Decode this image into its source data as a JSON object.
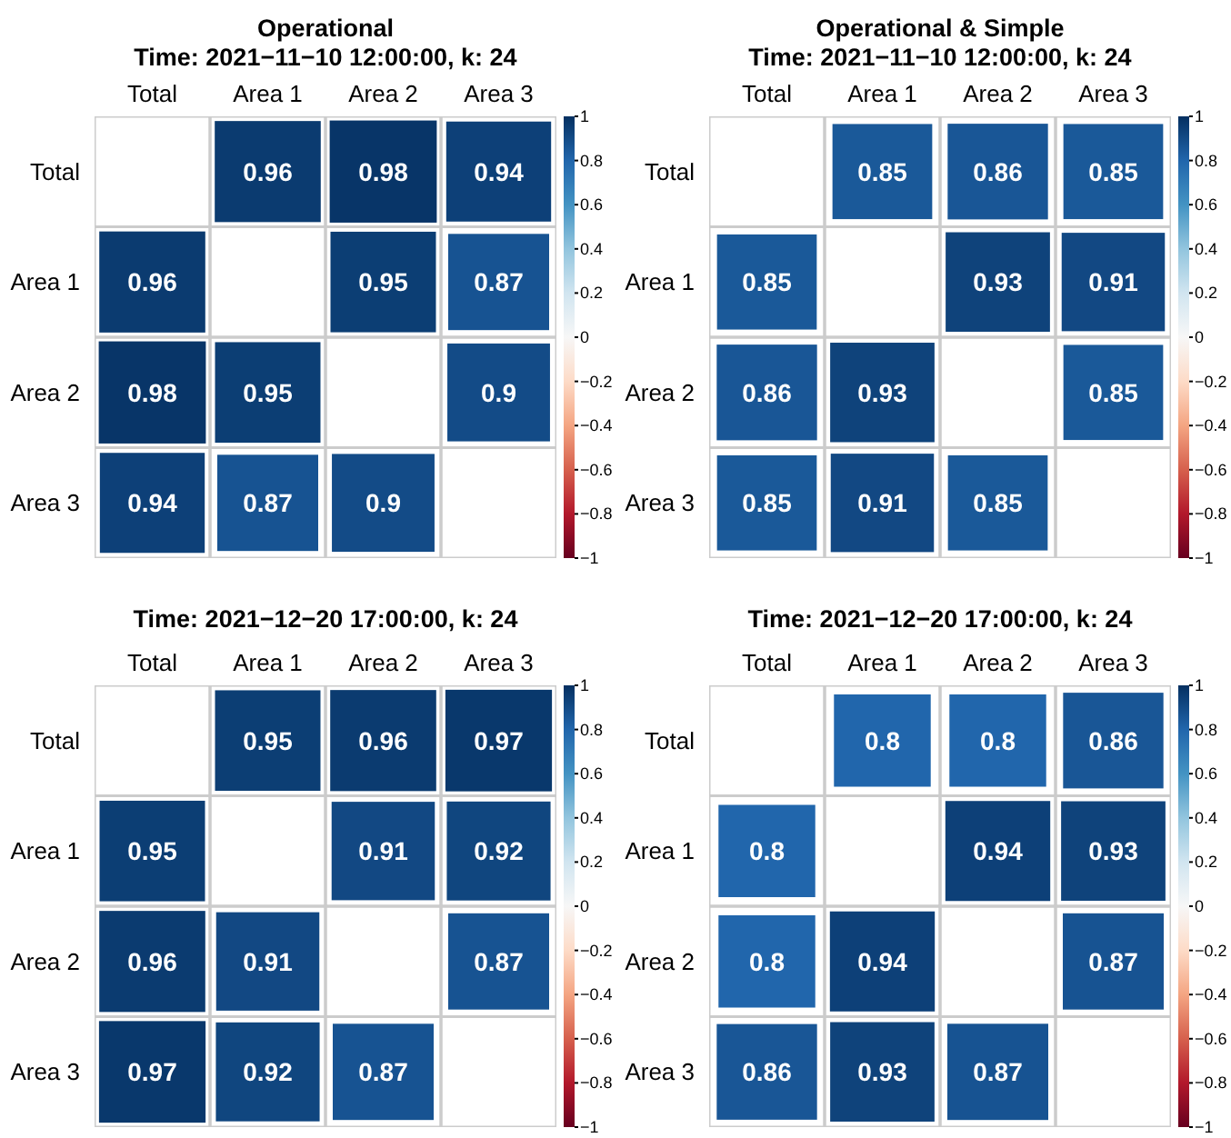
{
  "chart_data": [
    {
      "type": "heatmap",
      "title": "Operational",
      "subtitle": "Time: 2021−11−10 12:00:00, k: 24",
      "categories": [
        "Total",
        "Area 1",
        "Area 2",
        "Area 3"
      ],
      "y_categories": [
        "Total",
        "Area 1",
        "Area 2",
        "Area 3"
      ],
      "cells": [
        [
          null,
          0.96,
          0.98,
          0.94
        ],
        [
          0.96,
          null,
          0.95,
          0.87
        ],
        [
          0.98,
          0.95,
          null,
          0.9
        ],
        [
          0.94,
          0.87,
          0.9,
          null
        ]
      ],
      "data_labels": true,
      "clim": [
        -1,
        1
      ],
      "cticks": [
        1,
        0.8,
        0.6,
        0.4,
        0.2,
        0,
        {
          "value": -0.2,
          "label": "−0.2"
        },
        {
          "value": -0.4,
          "label": "−0.4"
        },
        {
          "value": -0.6,
          "label": "−0.6"
        },
        {
          "value": -0.8,
          "label": "−0.8"
        },
        {
          "value": -1,
          "label": "−1"
        }
      ]
    },
    {
      "type": "heatmap",
      "title": "Operational & Simple",
      "subtitle": "Time: 2021−11−10 12:00:00, k: 24",
      "categories": [
        "Total",
        "Area 1",
        "Area 2",
        "Area 3"
      ],
      "y_categories": [
        "Total",
        "Area 1",
        "Area 2",
        "Area 3"
      ],
      "cells": [
        [
          null,
          0.85,
          0.86,
          0.85
        ],
        [
          0.85,
          null,
          0.93,
          0.91
        ],
        [
          0.86,
          0.93,
          null,
          0.85
        ],
        [
          0.85,
          0.91,
          0.85,
          null
        ]
      ],
      "data_labels": true,
      "clim": [
        -1,
        1
      ],
      "cticks": [
        1,
        0.8,
        0.6,
        0.4,
        0.2,
        0,
        {
          "value": -0.2,
          "label": "−0.2"
        },
        {
          "value": -0.4,
          "label": "−0.4"
        },
        {
          "value": -0.6,
          "label": "−0.6"
        },
        {
          "value": -0.8,
          "label": "−0.8"
        },
        {
          "value": -1,
          "label": "−1"
        }
      ]
    },
    {
      "type": "heatmap",
      "title": "Time: 2021−12−20 17:00:00, k: 24",
      "categories": [
        "Total",
        "Area 1",
        "Area 2",
        "Area 3"
      ],
      "y_categories": [
        "Total",
        "Area 1",
        "Area 2",
        "Area 3"
      ],
      "cells": [
        [
          null,
          0.95,
          0.96,
          0.97
        ],
        [
          0.95,
          null,
          0.91,
          0.92
        ],
        [
          0.96,
          0.91,
          null,
          0.87
        ],
        [
          0.97,
          0.92,
          0.87,
          null
        ]
      ],
      "data_labels": true,
      "clim": [
        -1,
        1
      ],
      "cticks": [
        1,
        0.8,
        0.6,
        0.4,
        0.2,
        0,
        {
          "value": -0.2,
          "label": "−0.2"
        },
        {
          "value": -0.4,
          "label": "−0.4"
        },
        {
          "value": -0.6,
          "label": "−0.6"
        },
        {
          "value": -0.8,
          "label": "−0.8"
        },
        {
          "value": -1,
          "label": "−1"
        }
      ]
    },
    {
      "type": "heatmap",
      "title": "Time: 2021−12−20 17:00:00, k: 24",
      "categories": [
        "Total",
        "Area 1",
        "Area 2",
        "Area 3"
      ],
      "y_categories": [
        "Total",
        "Area 1",
        "Area 2",
        "Area 3"
      ],
      "cells": [
        [
          null,
          0.8,
          0.8,
          0.86
        ],
        [
          0.8,
          null,
          0.94,
          0.93
        ],
        [
          0.8,
          0.94,
          null,
          0.87
        ],
        [
          0.86,
          0.93,
          0.87,
          null
        ]
      ],
      "data_labels": true,
      "clim": [
        -1,
        1
      ],
      "cticks": [
        1,
        0.8,
        0.6,
        0.4,
        0.2,
        0,
        {
          "value": -0.2,
          "label": "−0.2"
        },
        {
          "value": -0.4,
          "label": "−0.4"
        },
        {
          "value": -0.6,
          "label": "−0.6"
        },
        {
          "value": -0.8,
          "label": "−0.8"
        },
        {
          "value": -1,
          "label": "−1"
        }
      ]
    }
  ]
}
